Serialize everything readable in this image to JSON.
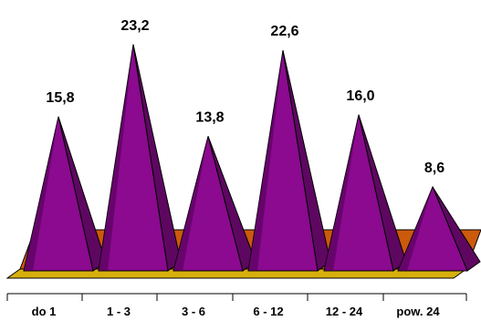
{
  "chart_data": {
    "type": "bar",
    "style": "3d-pyramid",
    "categories": [
      "do 1",
      "1 - 3",
      "3 - 6",
      "6 - 12",
      "12 - 24",
      "pow. 24"
    ],
    "values": [
      15.8,
      23.2,
      13.8,
      22.6,
      16.0,
      8.6
    ],
    "value_labels": [
      "15,8",
      "23,2",
      "13,8",
      "22,6",
      "16,0",
      "8,6"
    ],
    "ylim": [
      0,
      25
    ],
    "grid": false,
    "legend": "none",
    "colors": {
      "pyramid_front": "#8b0a8f",
      "pyramid_shade": "#5e0761",
      "pyramid_dark": "#4a0050",
      "floor_top": "#cc5a0c",
      "floor_front": "#d7b00c",
      "floor_edge": "#000000"
    }
  }
}
